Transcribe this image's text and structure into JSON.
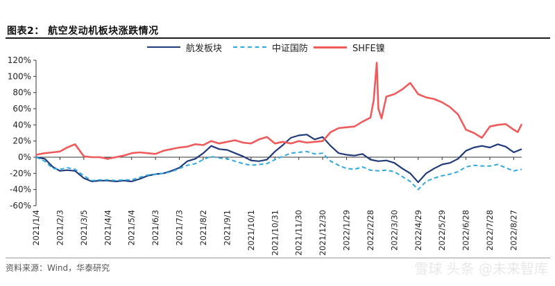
{
  "figure": {
    "title": "图表2：   航空发动机板块涨跌情况",
    "source": "资料来源：Wind，华泰研究",
    "watermark": "雪球 头条 @未来智库"
  },
  "chart_data": {
    "type": "line",
    "ylabel": "",
    "xlabel": "",
    "ylim": [
      -0.6,
      1.2
    ],
    "yticks": [
      "120%",
      "100%",
      "80%",
      "60%",
      "40%",
      "20%",
      "0%",
      "-20%",
      "-40%",
      "-60%"
    ],
    "ytick_values": [
      1.2,
      1.0,
      0.8,
      0.6,
      0.4,
      0.2,
      0.0,
      -0.2,
      -0.4,
      -0.6
    ],
    "xticks": [
      "2021/1/4",
      "2021/2/3",
      "2021/3/5",
      "2021/4/4",
      "2021/5/4",
      "2021/6/3",
      "2021/7/3",
      "2021/8/2",
      "2021/9/1",
      "2021/10/1",
      "2021/10/31",
      "2021/11/30",
      "2021/12/30",
      "2022/1/29",
      "2022/2/28",
      "2022/3/30",
      "2022/4/29",
      "2022/5/29",
      "2022/6/28",
      "2022/7/28",
      "2022/8/27"
    ],
    "legend": "top-center",
    "grid": false,
    "colors": {
      "aero": "#1f3a7a",
      "military": "#2ea8e0",
      "nickel": "#f05a5a"
    },
    "series": [
      {
        "name": "航发板块",
        "style": "solid",
        "points": [
          [
            "2021/1/4",
            0.0
          ],
          [
            "2021/1/15",
            -0.02
          ],
          [
            "2021/1/25",
            -0.12
          ],
          [
            "2021/2/3",
            -0.17
          ],
          [
            "2021/2/12",
            -0.16
          ],
          [
            "2021/2/22",
            -0.17
          ],
          [
            "2021/3/5",
            -0.26
          ],
          [
            "2021/3/15",
            -0.3
          ],
          [
            "2021/3/25",
            -0.29
          ],
          [
            "2021/4/4",
            -0.29
          ],
          [
            "2021/4/14",
            -0.3
          ],
          [
            "2021/4/24",
            -0.29
          ],
          [
            "2021/5/4",
            -0.3
          ],
          [
            "2021/5/14",
            -0.27
          ],
          [
            "2021/5/24",
            -0.23
          ],
          [
            "2021/6/3",
            -0.21
          ],
          [
            "2021/6/13",
            -0.2
          ],
          [
            "2021/6/23",
            -0.17
          ],
          [
            "2021/7/3",
            -0.13
          ],
          [
            "2021/7/13",
            -0.05
          ],
          [
            "2021/7/23",
            -0.02
          ],
          [
            "2021/8/2",
            0.05
          ],
          [
            "2021/8/12",
            0.14
          ],
          [
            "2021/8/22",
            0.1
          ],
          [
            "2021/9/1",
            0.09
          ],
          [
            "2021/9/11",
            0.05
          ],
          [
            "2021/9/21",
            0.01
          ],
          [
            "2021/10/1",
            -0.04
          ],
          [
            "2021/10/11",
            -0.05
          ],
          [
            "2021/10/21",
            -0.03
          ],
          [
            "2021/10/31",
            0.07
          ],
          [
            "2021/11/10",
            0.15
          ],
          [
            "2021/11/20",
            0.24
          ],
          [
            "2021/11/30",
            0.27
          ],
          [
            "2021/12/10",
            0.28
          ],
          [
            "2021/12/20",
            0.22
          ],
          [
            "2021/12/30",
            0.25
          ],
          [
            "2022/1/9",
            0.14
          ],
          [
            "2022/1/19",
            0.05
          ],
          [
            "2022/1/29",
            0.03
          ],
          [
            "2022/2/8",
            0.02
          ],
          [
            "2022/2/18",
            0.04
          ],
          [
            "2022/2/28",
            -0.03
          ],
          [
            "2022/3/10",
            -0.05
          ],
          [
            "2022/3/20",
            -0.04
          ],
          [
            "2022/3/30",
            -0.07
          ],
          [
            "2022/4/9",
            -0.14
          ],
          [
            "2022/4/19",
            -0.2
          ],
          [
            "2022/4/29",
            -0.31
          ],
          [
            "2022/5/9",
            -0.2
          ],
          [
            "2022/5/19",
            -0.14
          ],
          [
            "2022/5/29",
            -0.09
          ],
          [
            "2022/6/8",
            -0.07
          ],
          [
            "2022/6/18",
            -0.02
          ],
          [
            "2022/6/28",
            0.08
          ],
          [
            "2022/7/8",
            0.12
          ],
          [
            "2022/7/18",
            0.14
          ],
          [
            "2022/7/28",
            0.12
          ],
          [
            "2022/8/7",
            0.16
          ],
          [
            "2022/8/17",
            0.13
          ],
          [
            "2022/8/27",
            0.06
          ],
          [
            "2022/9/6",
            0.1
          ]
        ]
      },
      {
        "name": "中证国防",
        "style": "dashed",
        "points": [
          [
            "2021/1/4",
            0.0
          ],
          [
            "2021/1/15",
            -0.05
          ],
          [
            "2021/1/25",
            -0.14
          ],
          [
            "2021/2/3",
            -0.15
          ],
          [
            "2021/2/12",
            -0.13
          ],
          [
            "2021/2/22",
            -0.15
          ],
          [
            "2021/3/5",
            -0.23
          ],
          [
            "2021/3/15",
            -0.29
          ],
          [
            "2021/3/25",
            -0.28
          ],
          [
            "2021/4/4",
            -0.28
          ],
          [
            "2021/4/14",
            -0.29
          ],
          [
            "2021/4/24",
            -0.28
          ],
          [
            "2021/5/4",
            -0.28
          ],
          [
            "2021/5/14",
            -0.25
          ],
          [
            "2021/5/24",
            -0.22
          ],
          [
            "2021/6/3",
            -0.21
          ],
          [
            "2021/6/13",
            -0.2
          ],
          [
            "2021/6/23",
            -0.18
          ],
          [
            "2021/7/3",
            -0.14
          ],
          [
            "2021/7/13",
            -0.1
          ],
          [
            "2021/7/23",
            -0.08
          ],
          [
            "2021/8/2",
            -0.03
          ],
          [
            "2021/8/12",
            0.01
          ],
          [
            "2021/8/22",
            -0.01
          ],
          [
            "2021/9/1",
            -0.02
          ],
          [
            "2021/9/11",
            -0.05
          ],
          [
            "2021/9/21",
            -0.08
          ],
          [
            "2021/10/1",
            -0.1
          ],
          [
            "2021/10/11",
            -0.09
          ],
          [
            "2021/10/21",
            -0.08
          ],
          [
            "2021/10/31",
            -0.03
          ],
          [
            "2021/11/10",
            0.01
          ],
          [
            "2021/11/20",
            0.05
          ],
          [
            "2021/11/30",
            0.06
          ],
          [
            "2021/12/10",
            0.07
          ],
          [
            "2021/12/20",
            0.04
          ],
          [
            "2021/12/30",
            0.05
          ],
          [
            "2022/1/9",
            -0.05
          ],
          [
            "2022/1/19",
            -0.1
          ],
          [
            "2022/1/29",
            -0.14
          ],
          [
            "2022/2/8",
            -0.15
          ],
          [
            "2022/2/18",
            -0.12
          ],
          [
            "2022/2/28",
            -0.16
          ],
          [
            "2022/3/10",
            -0.17
          ],
          [
            "2022/3/20",
            -0.16
          ],
          [
            "2022/3/30",
            -0.18
          ],
          [
            "2022/4/9",
            -0.24
          ],
          [
            "2022/4/19",
            -0.3
          ],
          [
            "2022/4/29",
            -0.4
          ],
          [
            "2022/5/9",
            -0.3
          ],
          [
            "2022/5/19",
            -0.26
          ],
          [
            "2022/5/29",
            -0.23
          ],
          [
            "2022/6/8",
            -0.21
          ],
          [
            "2022/6/18",
            -0.18
          ],
          [
            "2022/6/28",
            -0.12
          ],
          [
            "2022/7/8",
            -0.1
          ],
          [
            "2022/7/18",
            -0.11
          ],
          [
            "2022/7/28",
            -0.11
          ],
          [
            "2022/8/7",
            -0.09
          ],
          [
            "2022/8/17",
            -0.13
          ],
          [
            "2022/8/27",
            -0.17
          ],
          [
            "2022/9/6",
            -0.15
          ]
        ]
      },
      {
        "name": "SHFE镍",
        "style": "solid",
        "points": [
          [
            "2021/1/4",
            0.03
          ],
          [
            "2021/1/15",
            0.05
          ],
          [
            "2021/1/25",
            0.06
          ],
          [
            "2021/2/3",
            0.07
          ],
          [
            "2021/2/12",
            0.12
          ],
          [
            "2021/2/22",
            0.16
          ],
          [
            "2021/3/5",
            0.01
          ],
          [
            "2021/3/15",
            0.0
          ],
          [
            "2021/3/25",
            0.0
          ],
          [
            "2021/4/4",
            -0.02
          ],
          [
            "2021/4/14",
            0.0
          ],
          [
            "2021/4/24",
            0.02
          ],
          [
            "2021/5/4",
            0.05
          ],
          [
            "2021/5/14",
            0.06
          ],
          [
            "2021/5/24",
            0.05
          ],
          [
            "2021/6/3",
            0.04
          ],
          [
            "2021/6/13",
            0.08
          ],
          [
            "2021/6/23",
            0.1
          ],
          [
            "2021/7/3",
            0.12
          ],
          [
            "2021/7/13",
            0.13
          ],
          [
            "2021/7/23",
            0.16
          ],
          [
            "2021/8/2",
            0.15
          ],
          [
            "2021/8/12",
            0.2
          ],
          [
            "2021/8/22",
            0.17
          ],
          [
            "2021/9/1",
            0.19
          ],
          [
            "2021/9/11",
            0.21
          ],
          [
            "2021/9/21",
            0.18
          ],
          [
            "2021/10/1",
            0.17
          ],
          [
            "2021/10/11",
            0.22
          ],
          [
            "2021/10/21",
            0.25
          ],
          [
            "2021/10/31",
            0.17
          ],
          [
            "2021/11/10",
            0.19
          ],
          [
            "2021/11/20",
            0.17
          ],
          [
            "2021/11/30",
            0.2
          ],
          [
            "2021/12/10",
            0.18
          ],
          [
            "2021/12/20",
            0.19
          ],
          [
            "2021/12/30",
            0.2
          ],
          [
            "2022/1/9",
            0.31
          ],
          [
            "2022/1/19",
            0.36
          ],
          [
            "2022/1/29",
            0.37
          ],
          [
            "2022/2/8",
            0.38
          ],
          [
            "2022/2/18",
            0.44
          ],
          [
            "2022/2/28",
            0.49
          ],
          [
            "2022/3/4",
            0.7
          ],
          [
            "2022/3/8",
            1.17
          ],
          [
            "2022/3/10",
            0.6
          ],
          [
            "2022/3/14",
            0.48
          ],
          [
            "2022/3/20",
            0.75
          ],
          [
            "2022/3/30",
            0.78
          ],
          [
            "2022/4/9",
            0.84
          ],
          [
            "2022/4/19",
            0.92
          ],
          [
            "2022/4/29",
            0.78
          ],
          [
            "2022/5/9",
            0.74
          ],
          [
            "2022/5/19",
            0.72
          ],
          [
            "2022/5/29",
            0.68
          ],
          [
            "2022/6/8",
            0.62
          ],
          [
            "2022/6/18",
            0.53
          ],
          [
            "2022/6/28",
            0.34
          ],
          [
            "2022/7/8",
            0.3
          ],
          [
            "2022/7/18",
            0.24
          ],
          [
            "2022/7/28",
            0.38
          ],
          [
            "2022/8/7",
            0.4
          ],
          [
            "2022/8/17",
            0.41
          ],
          [
            "2022/8/27",
            0.34
          ],
          [
            "2022/9/1",
            0.31
          ],
          [
            "2022/9/6",
            0.41
          ]
        ]
      }
    ]
  }
}
